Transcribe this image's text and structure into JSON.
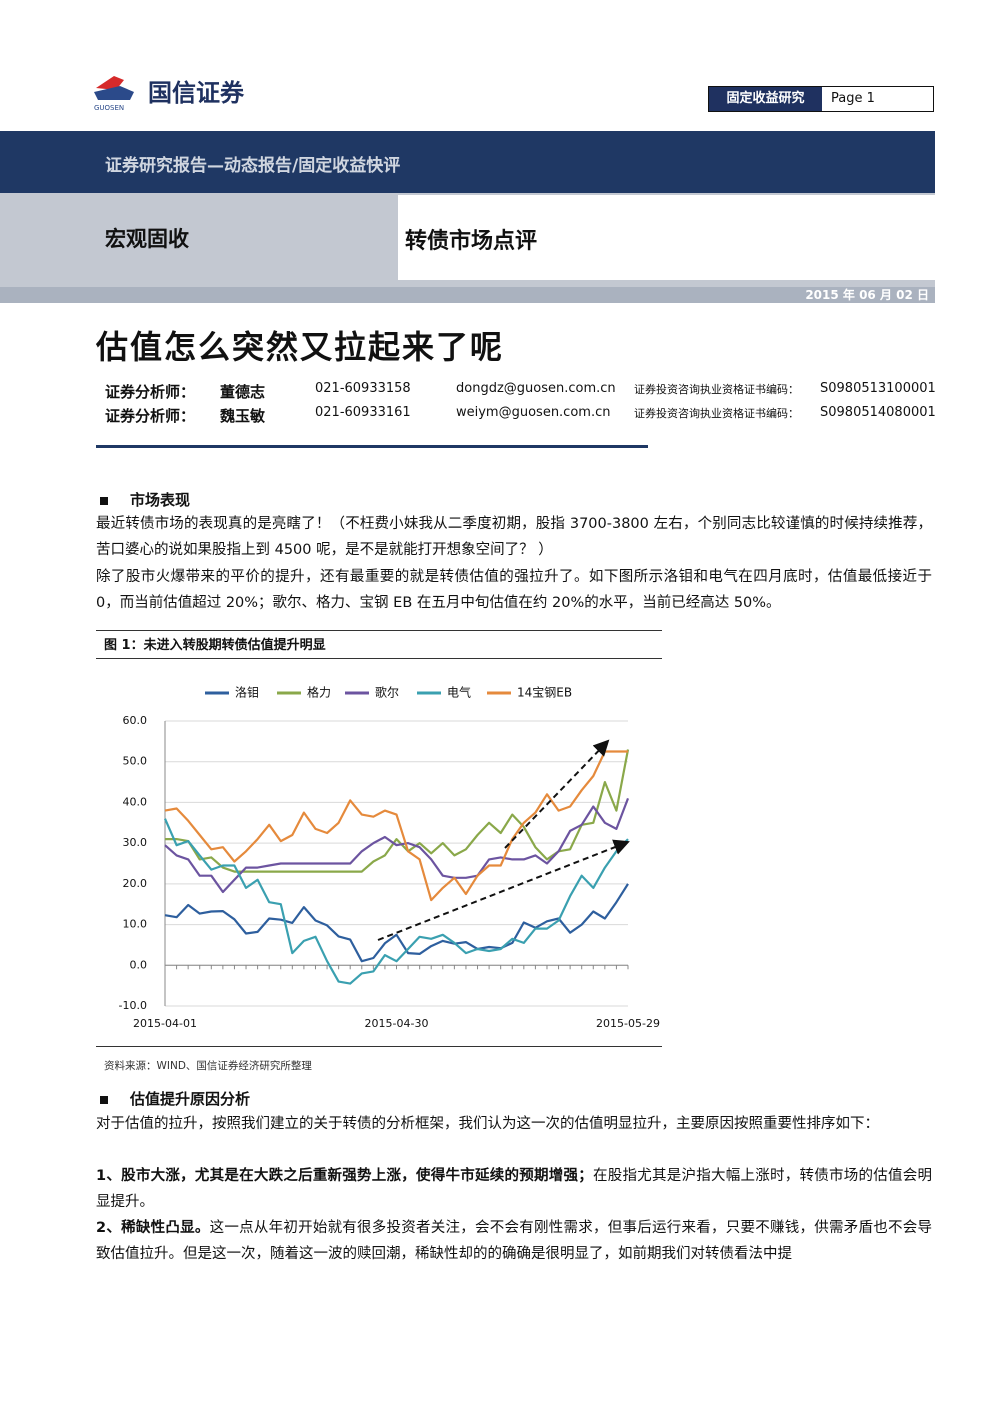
{
  "header": {
    "logo_cn": "国信证券",
    "logo_en": "GUOSEN",
    "dept": "固定收益研究",
    "page": "Page 1"
  },
  "banner": {
    "report_type": "证券研究报告—动态报告/固定收益快评",
    "category": "宏观固收",
    "topic": "转债市场点评",
    "date": "2015 年 06 月 02 日"
  },
  "title": "估值怎么突然又拉起来了呢",
  "analysts": [
    [
      "证券分析师：",
      "董德志",
      "021-60933158",
      "dongdz@guosen.com.cn",
      "证券投资咨询执业资格证书编码：",
      "S0980513100001"
    ],
    [
      "证券分析师：",
      "魏玉敏",
      "021-60933161",
      "weiym@guosen.com.cn",
      "证券投资咨询执业资格证书编码：",
      "S0980514080001"
    ]
  ],
  "sections": [
    {
      "heading": "市场表现",
      "paragraphs": [
        "最近转债市场的表现真的是亮瞎了！（不枉费小妹我从二季度初期，股指 3700-3800 左右，个别同志比较谨慎的时候持续推荐，苦口婆心的说如果股指上到 4500 呢，是不是就能打开想象空间了？ ）",
        "除了股市火爆带来的平价的提升，还有最重要的就是转债估值的强拉升了。如下图所示洛钼和电气在四月底时，估值最低接近于 0，而当前估值超过 20%；歌尔、格力、宝钢 EB 在五月中旬估值在约 20%的水平，当前已经高达 50%。"
      ]
    },
    {
      "heading": "估值提升原因分析",
      "paragraphs": [
        "对于估值的拉升，按照我们建立的关于转债的分析框架，我们认为这一次的估值明显拉升，主要原因按照重要性排序如下："
      ],
      "items": [
        {
          "lead": "1、股市大涨，尤其是在大跌之后重新强势上涨，使得牛市延续的预期增强；",
          "text": "在股指尤其是沪指大幅上涨时，转债市场的估值会明显提升。"
        },
        {
          "lead": "2、稀缺性凸显。",
          "text": "这一点从年初开始就有很多投资者关注，会不会有刚性需求，但事后运行来看，只要不赚钱，供需矛盾也不会导致估值拉升。但是这一次，随着这一波的赎回潮，稀缺性却的的确确是很明显了，如前期我们对转债看法中提"
        }
      ]
    }
  ],
  "chart_data": {
    "type": "line",
    "title": "图 1：未进入转股期转债估值提升明显",
    "source": "资料来源：WIND、国信证券经济研究所整理",
    "categories": [
      "2015-04-01",
      null,
      null,
      null,
      null,
      null,
      null,
      null,
      null,
      null,
      null,
      null,
      null,
      null,
      null,
      null,
      null,
      null,
      null,
      null,
      "2015-04-30",
      null,
      null,
      null,
      null,
      null,
      null,
      null,
      null,
      null,
      null,
      null,
      null,
      null,
      null,
      null,
      null,
      null,
      null,
      null,
      "2015-05-29"
    ],
    "series": [
      {
        "name": "洛钼",
        "color": "#2e5f9e",
        "values": [
          12.3,
          11.8,
          14.8,
          12.7,
          13.2,
          13.3,
          11.3,
          7.8,
          8.2,
          11.5,
          11.2,
          10.4,
          14.3,
          11.0,
          9.8,
          7.1,
          6.3,
          1.0,
          1.8,
          5.4,
          7.5,
          3.0,
          2.8,
          4.7,
          6.0,
          5.3,
          5.7,
          4.0,
          4.5,
          4.2,
          5.5,
          10.5,
          9.2,
          10.8,
          11.5,
          8.0,
          10.0,
          13.2,
          11.5,
          15.5,
          20.0
        ]
      },
      {
        "name": "格力",
        "color": "#8aa84a",
        "values": [
          31,
          31,
          30.5,
          26,
          26.5,
          24,
          23,
          23,
          23,
          23,
          23,
          23,
          23,
          23,
          23,
          23,
          23,
          23,
          25.5,
          27,
          31,
          28,
          30,
          27.5,
          30,
          27,
          28.5,
          32,
          35,
          32.5,
          37,
          34,
          29,
          26,
          28,
          28.5,
          34.5,
          35,
          45,
          38,
          53
        ]
      },
      {
        "name": "歌尔",
        "color": "#6c54a0",
        "values": [
          29.5,
          27,
          26,
          22,
          22,
          18,
          21,
          24,
          24,
          24.5,
          25,
          25,
          25,
          25,
          25,
          25,
          25,
          28,
          30,
          31.5,
          29.5,
          30,
          29,
          26,
          22,
          21.5,
          21.5,
          22,
          26,
          26.5,
          26,
          26,
          27,
          25,
          28,
          33,
          34.5,
          39,
          35,
          33.5,
          41
        ]
      },
      {
        "name": "电气",
        "color": "#3aa0b0",
        "values": [
          36,
          29.5,
          30.5,
          27,
          23.5,
          24.5,
          24.5,
          19,
          21,
          15.5,
          15,
          3,
          6,
          7,
          1,
          -4,
          -4.5,
          -2,
          -1.5,
          2.5,
          1,
          4,
          7,
          6.5,
          7.5,
          5.5,
          3,
          4,
          3.5,
          4,
          6.5,
          5.5,
          9,
          9,
          11,
          17,
          22,
          19,
          24,
          28,
          31
        ]
      },
      {
        "name": "14宝钢EB",
        "color": "#e58a3c",
        "values": [
          38,
          38.5,
          35.5,
          32,
          28.5,
          29,
          25.5,
          28,
          31,
          34.5,
          30.5,
          32,
          37.5,
          33.5,
          32.5,
          35,
          40.5,
          37,
          36.5,
          38,
          37,
          28,
          26,
          16,
          19,
          21.5,
          17.5,
          22,
          24.5,
          24.5,
          31,
          35,
          37.5,
          42,
          38,
          39,
          43,
          46.5,
          52.5,
          52.5,
          52.5
        ]
      }
    ],
    "ylim": [
      -10,
      60
    ],
    "yticks": [
      {
        "value": -10,
        "label": "-10.0"
      },
      {
        "value": 0,
        "label": "0.0"
      },
      {
        "value": 10,
        "label": "10.0"
      },
      {
        "value": 20,
        "label": "20.0"
      },
      {
        "value": 30,
        "label": "30.0"
      },
      {
        "value": 40,
        "label": "40.0"
      },
      {
        "value": 50,
        "label": "50.0"
      },
      {
        "value": 60,
        "label": "60.0"
      }
    ],
    "grid": true,
    "legend": "top"
  }
}
